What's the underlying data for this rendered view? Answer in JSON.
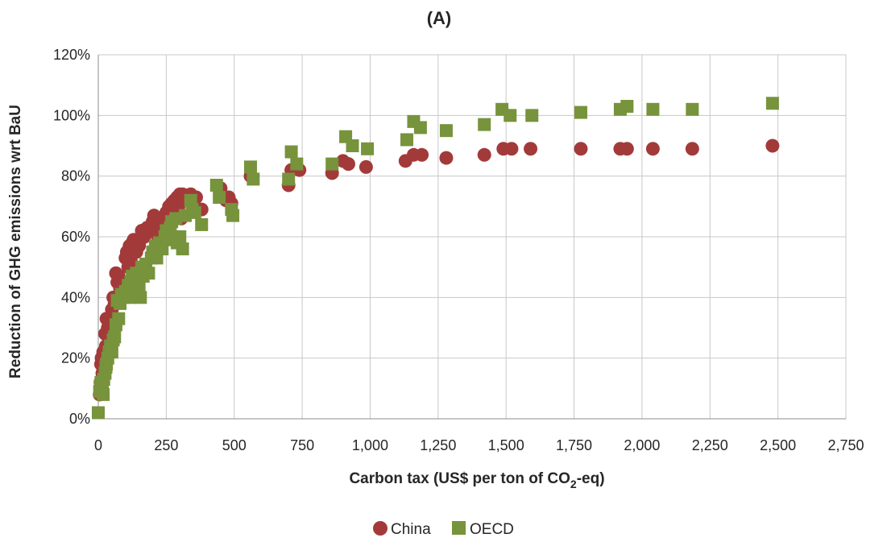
{
  "chart_data": {
    "type": "scatter",
    "title": "(A)",
    "xlabel": "Carbon tax  (US$ per ton of CO2-eq)",
    "xlabel_parts": {
      "before": "Carbon tax  (US$ per ton of CO",
      "subscript": "2",
      "after": "-eq)"
    },
    "ylabel": "Reduction of GHG emissions wrt BaU",
    "xlim": [
      0,
      2750
    ],
    "ylim": [
      0,
      1.2
    ],
    "x_ticks": [
      0,
      250,
      500,
      750,
      1000,
      1250,
      1500,
      1750,
      2000,
      2250,
      2500,
      2750
    ],
    "x_tick_labels": [
      "0",
      "250",
      "500",
      "750",
      "1,000",
      "1,250",
      "1,500",
      "1,750",
      "2,000",
      "2,250",
      "2,500",
      "2,750"
    ],
    "y_ticks": [
      0,
      0.2,
      0.4,
      0.6,
      0.8,
      1.0,
      1.2
    ],
    "y_tick_labels": [
      "0%",
      "20%",
      "40%",
      "60%",
      "80%",
      "100%",
      "120%"
    ],
    "grid": "horizontal",
    "legend_position": "bottom",
    "series": [
      {
        "name": "China",
        "marker": "circle",
        "color": "#a33a3a",
        "points": [
          [
            5,
            0.08
          ],
          [
            8,
            0.12
          ],
          [
            10,
            0.18
          ],
          [
            12,
            0.2
          ],
          [
            15,
            0.15
          ],
          [
            18,
            0.22
          ],
          [
            22,
            0.19
          ],
          [
            25,
            0.28
          ],
          [
            28,
            0.24
          ],
          [
            30,
            0.33
          ],
          [
            35,
            0.3
          ],
          [
            38,
            0.28
          ],
          [
            40,
            0.22
          ],
          [
            45,
            0.32
          ],
          [
            50,
            0.36
          ],
          [
            55,
            0.4
          ],
          [
            60,
            0.38
          ],
          [
            65,
            0.48
          ],
          [
            70,
            0.45
          ],
          [
            75,
            0.47
          ],
          [
            80,
            0.43
          ],
          [
            90,
            0.45
          ],
          [
            100,
            0.53
          ],
          [
            105,
            0.55
          ],
          [
            110,
            0.5
          ],
          [
            115,
            0.57
          ],
          [
            120,
            0.52
          ],
          [
            125,
            0.58
          ],
          [
            130,
            0.59
          ],
          [
            140,
            0.55
          ],
          [
            150,
            0.57
          ],
          [
            155,
            0.59
          ],
          [
            160,
            0.62
          ],
          [
            170,
            0.6
          ],
          [
            180,
            0.63
          ],
          [
            190,
            0.62
          ],
          [
            200,
            0.65
          ],
          [
            205,
            0.67
          ],
          [
            210,
            0.64
          ],
          [
            220,
            0.6
          ],
          [
            230,
            0.66
          ],
          [
            240,
            0.62
          ],
          [
            250,
            0.68
          ],
          [
            255,
            0.66
          ],
          [
            260,
            0.7
          ],
          [
            270,
            0.71
          ],
          [
            280,
            0.72
          ],
          [
            285,
            0.69
          ],
          [
            290,
            0.73
          ],
          [
            295,
            0.7
          ],
          [
            300,
            0.74
          ],
          [
            305,
            0.66
          ],
          [
            310,
            0.74
          ],
          [
            315,
            0.72
          ],
          [
            330,
            0.73
          ],
          [
            340,
            0.74
          ],
          [
            360,
            0.73
          ],
          [
            380,
            0.69
          ],
          [
            450,
            0.76
          ],
          [
            470,
            0.72
          ],
          [
            480,
            0.73
          ],
          [
            490,
            0.71
          ],
          [
            560,
            0.8
          ],
          [
            700,
            0.77
          ],
          [
            710,
            0.82
          ],
          [
            740,
            0.82
          ],
          [
            860,
            0.81
          ],
          [
            900,
            0.85
          ],
          [
            920,
            0.84
          ],
          [
            985,
            0.83
          ],
          [
            1130,
            0.85
          ],
          [
            1160,
            0.87
          ],
          [
            1190,
            0.87
          ],
          [
            1280,
            0.86
          ],
          [
            1420,
            0.87
          ],
          [
            1490,
            0.89
          ],
          [
            1520,
            0.89
          ],
          [
            1590,
            0.89
          ],
          [
            1775,
            0.89
          ],
          [
            1920,
            0.89
          ],
          [
            1945,
            0.89
          ],
          [
            2040,
            0.89
          ],
          [
            2185,
            0.89
          ],
          [
            2480,
            0.9
          ]
        ]
      },
      {
        "name": "OECD",
        "marker": "square",
        "color": "#77933c",
        "points": [
          [
            0,
            0.02
          ],
          [
            5,
            0.09
          ],
          [
            8,
            0.11
          ],
          [
            10,
            0.12
          ],
          [
            15,
            0.1
          ],
          [
            18,
            0.08
          ],
          [
            20,
            0.13
          ],
          [
            25,
            0.15
          ],
          [
            28,
            0.17
          ],
          [
            30,
            0.18
          ],
          [
            35,
            0.2
          ],
          [
            40,
            0.22
          ],
          [
            45,
            0.24
          ],
          [
            50,
            0.22
          ],
          [
            55,
            0.26
          ],
          [
            60,
            0.27
          ],
          [
            65,
            0.31
          ],
          [
            70,
            0.39
          ],
          [
            75,
            0.33
          ],
          [
            80,
            0.38
          ],
          [
            85,
            0.41
          ],
          [
            90,
            0.4
          ],
          [
            100,
            0.42
          ],
          [
            110,
            0.44
          ],
          [
            115,
            0.4
          ],
          [
            120,
            0.45
          ],
          [
            125,
            0.47
          ],
          [
            130,
            0.46
          ],
          [
            140,
            0.48
          ],
          [
            150,
            0.43
          ],
          [
            155,
            0.4
          ],
          [
            160,
            0.5
          ],
          [
            165,
            0.47
          ],
          [
            175,
            0.51
          ],
          [
            185,
            0.48
          ],
          [
            195,
            0.53
          ],
          [
            200,
            0.55
          ],
          [
            210,
            0.57
          ],
          [
            215,
            0.53
          ],
          [
            225,
            0.58
          ],
          [
            235,
            0.56
          ],
          [
            245,
            0.6
          ],
          [
            250,
            0.62
          ],
          [
            255,
            0.59
          ],
          [
            265,
            0.63
          ],
          [
            270,
            0.65
          ],
          [
            285,
            0.66
          ],
          [
            290,
            0.58
          ],
          [
            300,
            0.6
          ],
          [
            310,
            0.56
          ],
          [
            320,
            0.67
          ],
          [
            340,
            0.72
          ],
          [
            345,
            0.69
          ],
          [
            355,
            0.68
          ],
          [
            380,
            0.64
          ],
          [
            435,
            0.77
          ],
          [
            445,
            0.73
          ],
          [
            490,
            0.69
          ],
          [
            495,
            0.67
          ],
          [
            560,
            0.83
          ],
          [
            570,
            0.79
          ],
          [
            700,
            0.79
          ],
          [
            710,
            0.88
          ],
          [
            730,
            0.84
          ],
          [
            860,
            0.84
          ],
          [
            910,
            0.93
          ],
          [
            935,
            0.9
          ],
          [
            990,
            0.89
          ],
          [
            1135,
            0.92
          ],
          [
            1160,
            0.98
          ],
          [
            1185,
            0.96
          ],
          [
            1280,
            0.95
          ],
          [
            1420,
            0.97
          ],
          [
            1485,
            1.02
          ],
          [
            1515,
            1.0
          ],
          [
            1595,
            1.0
          ],
          [
            1775,
            1.01
          ],
          [
            1920,
            1.02
          ],
          [
            1945,
            1.03
          ],
          [
            2040,
            1.02
          ],
          [
            2185,
            1.02
          ],
          [
            2480,
            1.04
          ]
        ]
      }
    ]
  }
}
